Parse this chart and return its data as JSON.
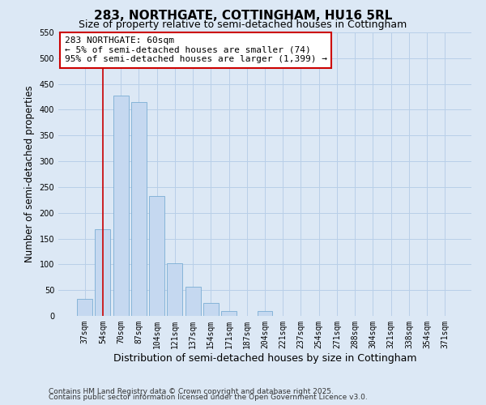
{
  "title": "283, NORTHGATE, COTTINGHAM, HU16 5RL",
  "subtitle": "Size of property relative to semi-detached houses in Cottingham",
  "xlabel": "Distribution of semi-detached houses by size in Cottingham",
  "ylabel": "Number of semi-detached properties",
  "bar_labels": [
    "37sqm",
    "54sqm",
    "70sqm",
    "87sqm",
    "104sqm",
    "121sqm",
    "137sqm",
    "154sqm",
    "171sqm",
    "187sqm",
    "204sqm",
    "221sqm",
    "237sqm",
    "254sqm",
    "271sqm",
    "288sqm",
    "304sqm",
    "321sqm",
    "338sqm",
    "354sqm",
    "371sqm"
  ],
  "bar_values": [
    33,
    168,
    427,
    415,
    232,
    102,
    57,
    25,
    10,
    0,
    10,
    0,
    0,
    0,
    0,
    0,
    0,
    0,
    0,
    0,
    0
  ],
  "bar_color": "#c5d8f0",
  "bar_edge_color": "#7aadd4",
  "vline_x": 1,
  "vline_color": "#cc0000",
  "annotation_text": "283 NORTHGATE: 60sqm\n← 5% of semi-detached houses are smaller (74)\n95% of semi-detached houses are larger (1,399) →",
  "annotation_box_color": "#ffffff",
  "annotation_box_edge_color": "#cc0000",
  "ylim": [
    0,
    550
  ],
  "yticks": [
    0,
    50,
    100,
    150,
    200,
    250,
    300,
    350,
    400,
    450,
    500,
    550
  ],
  "background_color": "#dce8f5",
  "plot_bg_color": "#dce8f5",
  "grid_color": "#b8cfe8",
  "footer_line1": "Contains HM Land Registry data © Crown copyright and database right 2025.",
  "footer_line2": "Contains public sector information licensed under the Open Government Licence v3.0.",
  "title_fontsize": 11,
  "subtitle_fontsize": 9,
  "xlabel_fontsize": 9,
  "ylabel_fontsize": 8.5,
  "tick_fontsize": 7,
  "annotation_fontsize": 8,
  "footer_fontsize": 6.5
}
